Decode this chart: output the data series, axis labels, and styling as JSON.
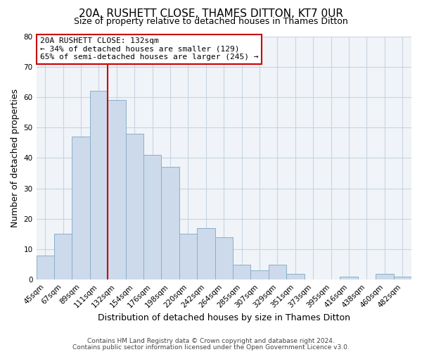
{
  "title": "20A, RUSHETT CLOSE, THAMES DITTON, KT7 0UR",
  "subtitle": "Size of property relative to detached houses in Thames Ditton",
  "xlabel": "Distribution of detached houses by size in Thames Ditton",
  "ylabel": "Number of detached properties",
  "bar_color": "#cddaeb",
  "bar_edge_color": "#8aafc8",
  "bar_edge_width": 0.7,
  "categories": [
    "45sqm",
    "67sqm",
    "89sqm",
    "111sqm",
    "132sqm",
    "154sqm",
    "176sqm",
    "198sqm",
    "220sqm",
    "242sqm",
    "264sqm",
    "285sqm",
    "307sqm",
    "329sqm",
    "351sqm",
    "373sqm",
    "395sqm",
    "416sqm",
    "438sqm",
    "460sqm",
    "482sqm"
  ],
  "values": [
    8,
    15,
    47,
    62,
    59,
    48,
    41,
    37,
    15,
    17,
    14,
    5,
    3,
    5,
    2,
    0,
    0,
    1,
    0,
    2,
    1
  ],
  "ylim": [
    0,
    80
  ],
  "yticks": [
    0,
    10,
    20,
    30,
    40,
    50,
    60,
    70,
    80
  ],
  "vline_index": 4,
  "vline_color": "#cc0000",
  "annotation_title": "20A RUSHETT CLOSE: 132sqm",
  "annotation_line1": "← 34% of detached houses are smaller (129)",
  "annotation_line2": "65% of semi-detached houses are larger (245) →",
  "annotation_box_color": "#ffffff",
  "annotation_box_edge": "#cc0000",
  "footer1": "Contains HM Land Registry data © Crown copyright and database right 2024.",
  "footer2": "Contains public sector information licensed under the Open Government Licence v3.0.",
  "bg_color": "#f0f4f8",
  "grid_color": "#c8d4e0",
  "title_fontsize": 11,
  "subtitle_fontsize": 9,
  "label_fontsize": 9,
  "tick_fontsize": 7.5,
  "footer_fontsize": 6.5
}
